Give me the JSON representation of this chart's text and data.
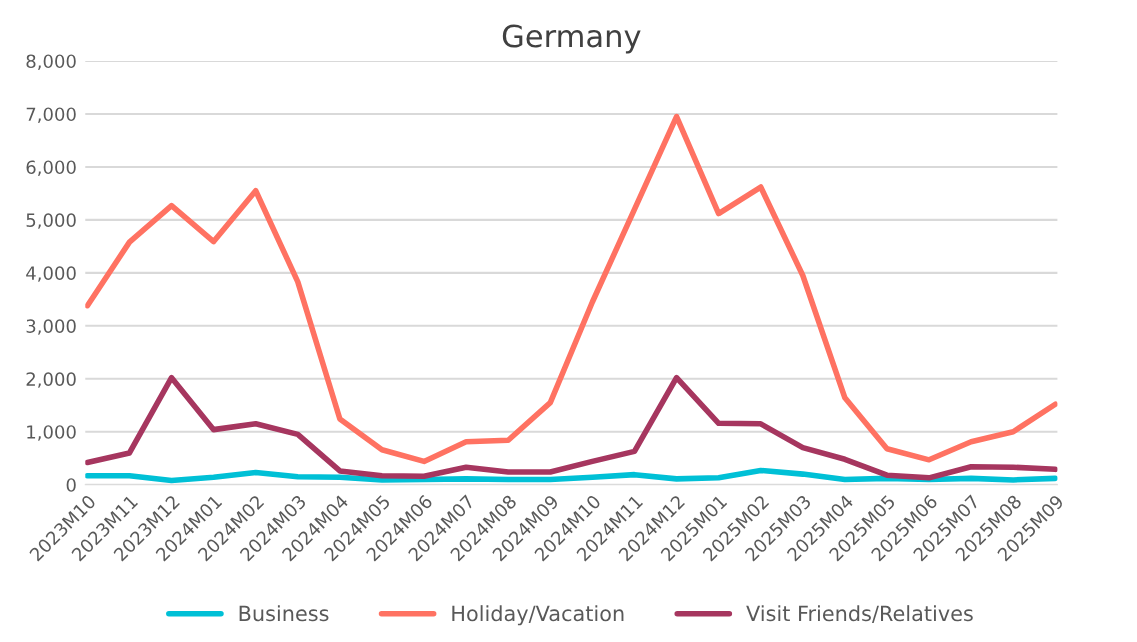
{
  "chart_data": {
    "type": "line",
    "title": "Germany",
    "categories": [
      "2023M10",
      "2023M11",
      "2023M12",
      "2024M01",
      "2024M02",
      "2024M03",
      "2024M04",
      "2024M05",
      "2024M06",
      "2024M07",
      "2024M08",
      "2024M09",
      "2024M10",
      "2024M11",
      "2024M12",
      "2025M01",
      "2025M02",
      "2025M03",
      "2025M04",
      "2025M05",
      "2025M06",
      "2025M07",
      "2025M08",
      "2025M09"
    ],
    "series": [
      {
        "name": "Business",
        "color": "#00c0d6",
        "values": [
          170,
          170,
          80,
          140,
          230,
          150,
          140,
          90,
          100,
          110,
          100,
          100,
          140,
          190,
          110,
          130,
          270,
          200,
          100,
          120,
          100,
          120,
          90,
          120
        ]
      },
      {
        "name": "Holiday/Vacation",
        "color": "#ff7262",
        "values": [
          3380,
          4580,
          5270,
          4590,
          5550,
          3830,
          1240,
          660,
          440,
          810,
          840,
          1550,
          3450,
          5200,
          6950,
          5120,
          5620,
          3950,
          1640,
          680,
          470,
          810,
          1000,
          1520
        ]
      },
      {
        "name": "Visit Friends/Relatives",
        "color": "#a6365f",
        "values": [
          420,
          600,
          2020,
          1040,
          1150,
          950,
          260,
          170,
          160,
          330,
          240,
          240,
          440,
          630,
          2020,
          1160,
          1150,
          700,
          480,
          180,
          130,
          340,
          330,
          290
        ]
      }
    ],
    "ylim": [
      0,
      8000
    ],
    "yticks": [
      {
        "value": 0,
        "label": "0"
      },
      {
        "value": 1000,
        "label": "1,000"
      },
      {
        "value": 2000,
        "label": "2,000"
      },
      {
        "value": 3000,
        "label": "3,000"
      },
      {
        "value": 4000,
        "label": "4,000"
      },
      {
        "value": 5000,
        "label": "5,000"
      },
      {
        "value": 6000,
        "label": "6,000"
      },
      {
        "value": 7000,
        "label": "7,000"
      },
      {
        "value": 8000,
        "label": "8,000"
      }
    ],
    "grid": "y",
    "legend": "bottom",
    "marker": "none",
    "line_style": "solid"
  }
}
